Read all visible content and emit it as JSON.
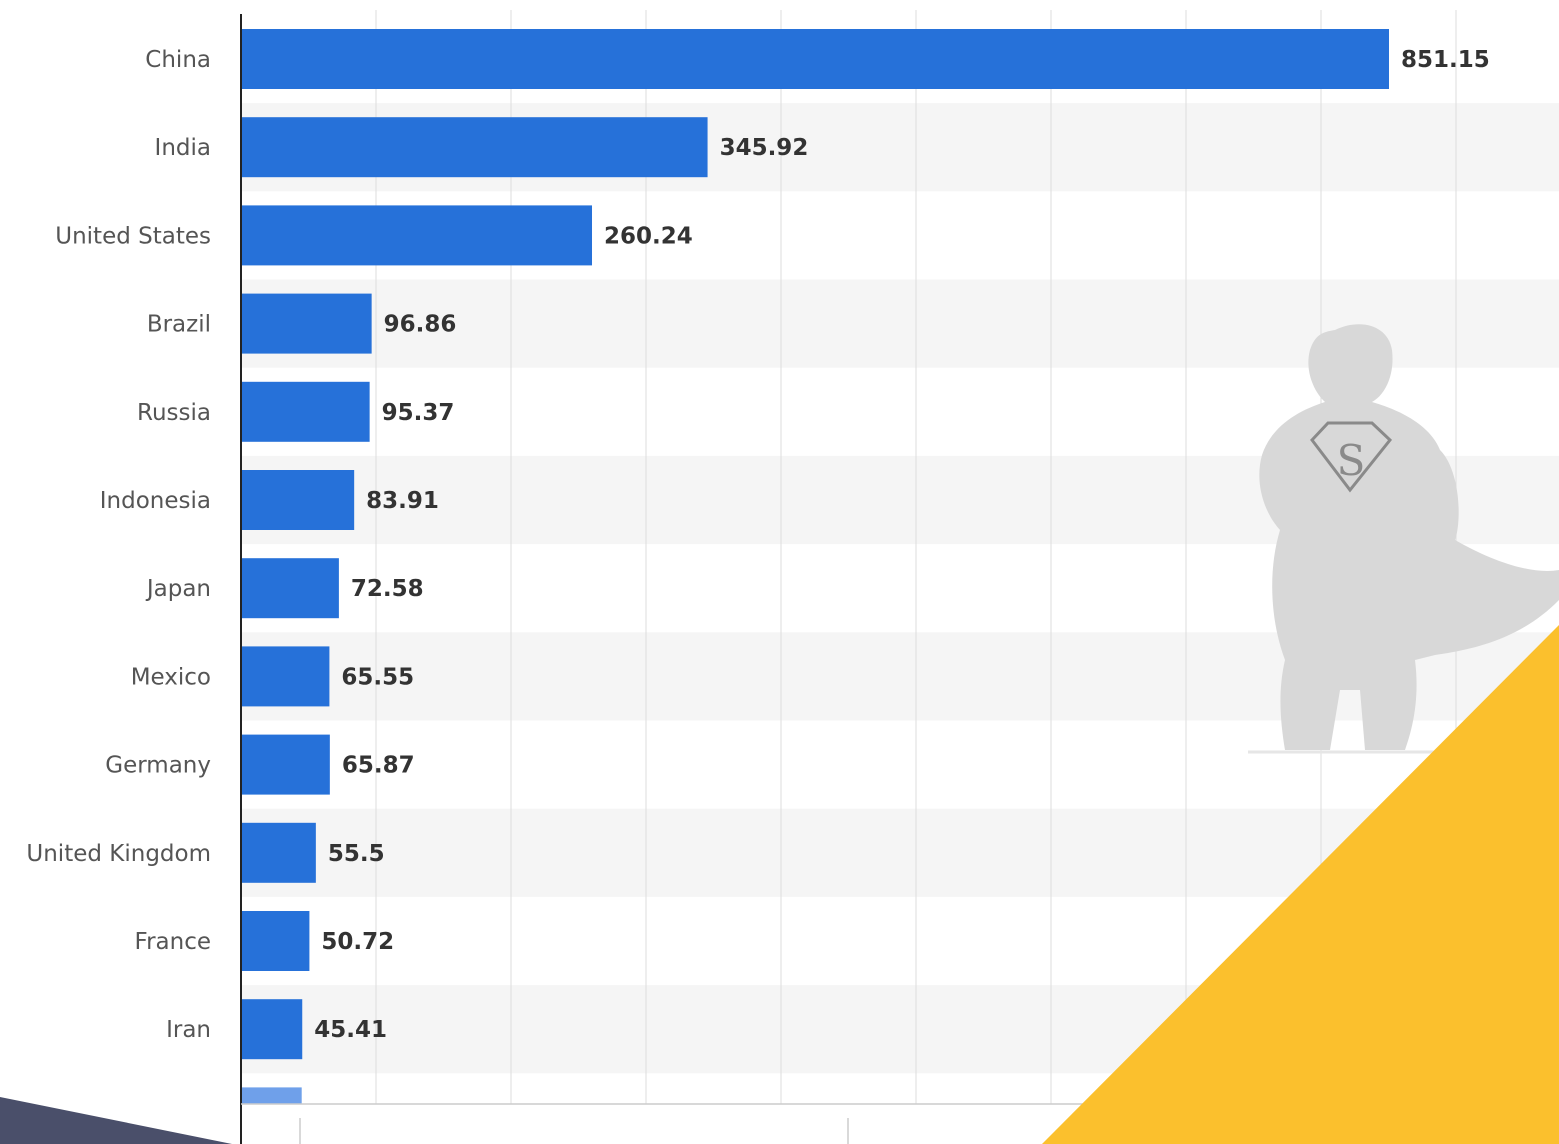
{
  "colors": {
    "bar": "#2671d9",
    "bar_partial": "#6fa0ea",
    "band": "#f5f5f5",
    "grid": "#dddddd",
    "axis": "#222222",
    "accent_yellow": "#fbc02d",
    "accent_slate": "#4a4f6a",
    "watermark": "#d6d6d6"
  },
  "chart_data": {
    "type": "bar",
    "orientation": "horizontal",
    "categories": [
      "China",
      "India",
      "United States",
      "Brazil",
      "Russia",
      "Indonesia",
      "Japan",
      "Mexico",
      "Germany",
      "United Kingdom",
      "France",
      "Iran"
    ],
    "values": [
      851.15,
      345.92,
      260.24,
      96.86,
      95.37,
      83.91,
      72.58,
      65.55,
      65.87,
      55.5,
      50.72,
      45.41
    ],
    "value_labels": [
      "851.15",
      "345.92",
      "260.24",
      "96.86",
      "95.37",
      "83.91",
      "72.58",
      "65.55",
      "65.87",
      "55.5",
      "50.72",
      "45.41"
    ],
    "partial_bar_value": 45,
    "xlim": [
      0,
      1000
    ],
    "grid": true,
    "title": "",
    "xlabel": "",
    "ylabel": ""
  },
  "decor": {
    "watermark_icon": "superhero-silhouette-icon",
    "watermark_emblem": "S"
  }
}
